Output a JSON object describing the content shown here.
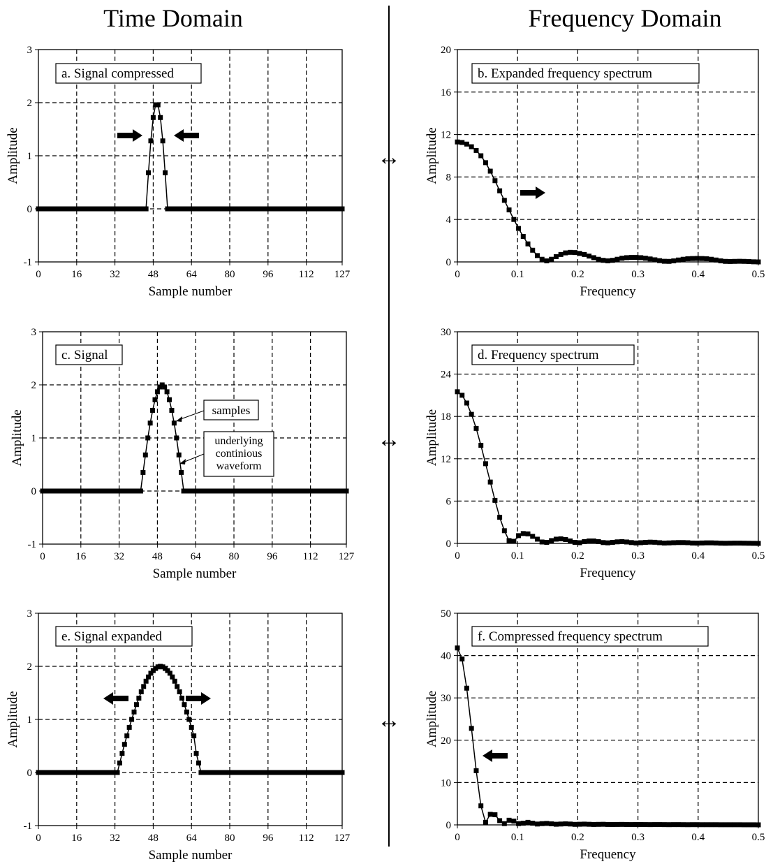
{
  "headings": {
    "left": "Time Domain",
    "right": "Frequency Domain"
  },
  "pair_symbol": "↔",
  "chart_data": [
    {
      "id": "a",
      "type": "scatter",
      "title": "a.  Signal compressed",
      "xlabel": "Sample number",
      "ylabel": "Amplitude",
      "xlim": [
        0,
        127
      ],
      "ylim": [
        -1,
        3
      ],
      "xticks": [
        0,
        16,
        32,
        48,
        64,
        80,
        96,
        112,
        127
      ],
      "yticks": [
        -1,
        0,
        1,
        2,
        3
      ],
      "grid": true,
      "arrows": [
        "right",
        "left"
      ],
      "x": [
        0,
        1,
        2,
        3,
        4,
        5,
        6,
        7,
        8,
        9,
        10,
        11,
        12,
        13,
        14,
        15,
        16,
        17,
        18,
        19,
        20,
        21,
        22,
        23,
        24,
        25,
        26,
        27,
        28,
        29,
        30,
        31,
        32,
        33,
        34,
        35,
        36,
        37,
        38,
        39,
        40,
        41,
        42,
        43,
        44,
        45,
        46,
        47,
        48,
        49,
        50,
        51,
        52,
        53,
        54,
        55,
        56,
        57,
        58,
        59,
        60,
        61,
        62,
        63,
        64,
        65,
        66,
        67,
        68,
        69,
        70,
        71,
        72,
        73,
        74,
        75,
        76,
        77,
        78,
        79,
        80,
        81,
        82,
        83,
        84,
        85,
        86,
        87,
        88,
        89,
        90,
        91,
        92,
        93,
        94,
        95,
        96,
        97,
        98,
        99,
        100,
        101,
        102,
        103,
        104,
        105,
        106,
        107,
        108,
        109,
        110,
        111,
        112,
        113,
        114,
        115,
        116,
        117,
        118,
        119,
        120,
        121,
        122,
        123,
        124,
        125,
        126,
        127
      ],
      "y": [
        0,
        0,
        0,
        0,
        0,
        0,
        0,
        0,
        0,
        0,
        0,
        0,
        0,
        0,
        0,
        0,
        0,
        0,
        0,
        0,
        0,
        0,
        0,
        0,
        0,
        0,
        0,
        0,
        0,
        0,
        0,
        0,
        0,
        0,
        0,
        0,
        0,
        0,
        0,
        0,
        0,
        0,
        0,
        0,
        0,
        0,
        0,
        0,
        0,
        0,
        0,
        0,
        0,
        0,
        0,
        0,
        0,
        0,
        0,
        0,
        0,
        0,
        0,
        0,
        0,
        0,
        0,
        0,
        0,
        0,
        0,
        0,
        0,
        0,
        0,
        0,
        0,
        0,
        0,
        0,
        0,
        0,
        0,
        0,
        0,
        0,
        0,
        0,
        0,
        0,
        0,
        0,
        0,
        0,
        0,
        0,
        0,
        0,
        0,
        0,
        0,
        0,
        0,
        0,
        0,
        0,
        0,
        0,
        0,
        0,
        0,
        0,
        0,
        0,
        0,
        0,
        0,
        0,
        0,
        0,
        0,
        0,
        0,
        0,
        0,
        0,
        0,
        0
      ],
      "pulse": {
        "x": [
          46,
          47,
          48,
          49,
          50,
          51,
          52,
          53,
          54
        ],
        "y": [
          0.68,
          1.28,
          1.72,
          1.96,
          1.96,
          1.72,
          1.28,
          0.68,
          0
        ]
      }
    },
    {
      "id": "b",
      "type": "line",
      "title": "b.  Expanded frequency spectrum",
      "xlabel": "Frequency",
      "ylabel": "Amplitude",
      "xlim": [
        0,
        0.5
      ],
      "ylim": [
        0,
        20
      ],
      "xticks": [
        0,
        0.1,
        0.2,
        0.3,
        0.4,
        0.5
      ],
      "yticks": [
        0,
        4,
        8,
        12,
        16,
        20
      ],
      "grid": true,
      "arrows": [
        "right"
      ],
      "x": [
        0.0,
        0.0078,
        0.0156,
        0.0234,
        0.0313,
        0.0391,
        0.0469,
        0.0547,
        0.0625,
        0.0703,
        0.0781,
        0.0859,
        0.0938,
        0.1016,
        0.1094,
        0.1172,
        0.125,
        0.1328,
        0.1406,
        0.1484,
        0.1563,
        0.1641,
        0.1719,
        0.1797,
        0.1875,
        0.1953,
        0.2031,
        0.2109,
        0.2188,
        0.2266,
        0.2344,
        0.2422,
        0.25,
        0.2578,
        0.2656,
        0.2734,
        0.2813,
        0.2891,
        0.2969,
        0.3047,
        0.3125,
        0.3203,
        0.3281,
        0.3359,
        0.3438,
        0.3516,
        0.3594,
        0.3672,
        0.375,
        0.3828,
        0.3906,
        0.3984,
        0.4063,
        0.4141,
        0.4219,
        0.4297,
        0.4375,
        0.4453,
        0.4531,
        0.4609,
        0.4688,
        0.4766,
        0.4844,
        0.4922,
        0.5
      ],
      "y": [
        11.3,
        11.25,
        11.1,
        10.85,
        10.5,
        10.0,
        9.35,
        8.55,
        7.65,
        6.7,
        5.8,
        4.9,
        4.0,
        3.15,
        2.4,
        1.7,
        1.1,
        0.6,
        0.25,
        0.1,
        0.25,
        0.5,
        0.7,
        0.85,
        0.9,
        0.88,
        0.8,
        0.7,
        0.55,
        0.4,
        0.25,
        0.15,
        0.1,
        0.15,
        0.25,
        0.35,
        0.4,
        0.42,
        0.42,
        0.4,
        0.35,
        0.28,
        0.2,
        0.12,
        0.06,
        0.05,
        0.1,
        0.18,
        0.25,
        0.3,
        0.32,
        0.33,
        0.32,
        0.3,
        0.25,
        0.18,
        0.1,
        0.05,
        0.04,
        0.05,
        0.06,
        0.05,
        0.03,
        0.01,
        0.0
      ]
    },
    {
      "id": "c",
      "type": "scatter",
      "title": "c.  Signal",
      "xlabel": "Sample number",
      "ylabel": "Amplitude",
      "xlim": [
        0,
        127
      ],
      "ylim": [
        -1,
        3
      ],
      "xticks": [
        0,
        16,
        32,
        48,
        64,
        80,
        96,
        112,
        127
      ],
      "yticks": [
        -1,
        0,
        1,
        2,
        3
      ],
      "grid": true,
      "annotations": [
        {
          "label": "samples"
        },
        {
          "label": "underlying continious waveform",
          "lines": [
            "underlying",
            "continious",
            "waveform"
          ]
        }
      ],
      "pulse": {
        "x": [
          41,
          42,
          43,
          44,
          45,
          46,
          47,
          48,
          49,
          50,
          51,
          52,
          53,
          54,
          55,
          56,
          57,
          58,
          59
        ],
        "y": [
          0,
          0.35,
          0.68,
          1.0,
          1.28,
          1.52,
          1.72,
          1.87,
          1.96,
          2.0,
          1.96,
          1.87,
          1.72,
          1.52,
          1.28,
          1.0,
          0.68,
          0.35,
          0
        ]
      }
    },
    {
      "id": "d",
      "type": "line",
      "title": "d.  Frequency spectrum",
      "xlabel": "Frequency",
      "ylabel": "Amplitude",
      "xlim": [
        0,
        0.5
      ],
      "ylim": [
        0,
        30
      ],
      "xticks": [
        0,
        0.1,
        0.2,
        0.3,
        0.4,
        0.5
      ],
      "yticks": [
        0,
        6,
        12,
        18,
        24,
        30
      ],
      "grid": true,
      "x": [
        0.0,
        0.0078,
        0.0156,
        0.0234,
        0.0313,
        0.0391,
        0.0469,
        0.0547,
        0.0625,
        0.0703,
        0.0781,
        0.0859,
        0.0938,
        0.1016,
        0.1094,
        0.1172,
        0.125,
        0.1328,
        0.1406,
        0.1484,
        0.1563,
        0.1641,
        0.1719,
        0.1797,
        0.1875,
        0.1953,
        0.2031,
        0.2109,
        0.2188,
        0.2266,
        0.2344,
        0.2422,
        0.25,
        0.2578,
        0.2656,
        0.2734,
        0.2813,
        0.2891,
        0.2969,
        0.3047,
        0.3125,
        0.3203,
        0.3281,
        0.3359,
        0.3438,
        0.3516,
        0.3594,
        0.3672,
        0.375,
        0.3828,
        0.3906,
        0.3984,
        0.4063,
        0.4141,
        0.4219,
        0.4297,
        0.4375,
        0.4453,
        0.4531,
        0.4609,
        0.4688,
        0.4766,
        0.4844,
        0.4922,
        0.5
      ],
      "y": [
        21.5,
        21.0,
        19.9,
        18.3,
        16.3,
        13.9,
        11.3,
        8.7,
        6.1,
        3.7,
        1.8,
        0.4,
        0.3,
        1.1,
        1.4,
        1.35,
        1.0,
        0.6,
        0.2,
        0.15,
        0.4,
        0.6,
        0.65,
        0.55,
        0.35,
        0.15,
        0.1,
        0.25,
        0.35,
        0.35,
        0.25,
        0.12,
        0.08,
        0.15,
        0.22,
        0.25,
        0.2,
        0.12,
        0.06,
        0.1,
        0.15,
        0.18,
        0.16,
        0.1,
        0.05,
        0.07,
        0.1,
        0.12,
        0.12,
        0.1,
        0.05,
        0.04,
        0.06,
        0.08,
        0.08,
        0.06,
        0.03,
        0.02,
        0.03,
        0.04,
        0.04,
        0.03,
        0.02,
        0.01,
        0.0
      ]
    },
    {
      "id": "e",
      "type": "scatter",
      "title": "e.  Signal expanded",
      "xlabel": "Sample number",
      "ylabel": "Amplitude",
      "xlim": [
        0,
        127
      ],
      "ylim": [
        -1,
        3
      ],
      "xticks": [
        0,
        16,
        32,
        48,
        64,
        80,
        96,
        112,
        127
      ],
      "yticks": [
        -1,
        0,
        1,
        2,
        3
      ],
      "grid": true,
      "arrows": [
        "left",
        "right"
      ],
      "pulse": {
        "x": [
          33,
          34,
          35,
          36,
          37,
          38,
          39,
          40,
          41,
          42,
          43,
          44,
          45,
          46,
          47,
          48,
          49,
          50,
          51,
          52,
          53,
          54,
          55,
          56,
          57,
          58,
          59,
          60,
          61,
          62,
          63,
          64,
          65,
          66,
          67
        ],
        "y": [
          0,
          0.18,
          0.36,
          0.53,
          0.69,
          0.85,
          1.0,
          1.14,
          1.28,
          1.4,
          1.52,
          1.62,
          1.72,
          1.8,
          1.87,
          1.92,
          1.96,
          1.99,
          2.0,
          1.99,
          1.96,
          1.92,
          1.87,
          1.8,
          1.72,
          1.62,
          1.52,
          1.4,
          1.28,
          1.14,
          1.0,
          0.85,
          0.69,
          0.36,
          0.18
        ]
      }
    },
    {
      "id": "f",
      "type": "line",
      "title": "f.  Compressed frequency spectrum",
      "xlabel": "Frequency",
      "ylabel": "Amplitude",
      "xlim": [
        0,
        0.5
      ],
      "ylim": [
        0,
        50
      ],
      "xticks": [
        0,
        0.1,
        0.2,
        0.3,
        0.4,
        0.5
      ],
      "yticks": [
        0,
        10,
        20,
        30,
        40,
        50
      ],
      "grid": true,
      "arrows": [
        "left"
      ],
      "x": [
        0.0,
        0.0078,
        0.0156,
        0.0234,
        0.0313,
        0.0391,
        0.0469,
        0.0547,
        0.0625,
        0.0703,
        0.0781,
        0.0859,
        0.0938,
        0.1016,
        0.1094,
        0.1172,
        0.125,
        0.1328,
        0.1406,
        0.1484,
        0.1563,
        0.1641,
        0.1719,
        0.1797,
        0.1875,
        0.1953,
        0.2031,
        0.2109,
        0.2188,
        0.2266,
        0.2344,
        0.2422,
        0.25,
        0.2578,
        0.2656,
        0.2734,
        0.2813,
        0.2891,
        0.2969,
        0.3047,
        0.3125,
        0.3203,
        0.3281,
        0.3359,
        0.3438,
        0.3516,
        0.3594,
        0.3672,
        0.375,
        0.3828,
        0.3906,
        0.3984,
        0.4063,
        0.4141,
        0.4219,
        0.4297,
        0.4375,
        0.4453,
        0.4531,
        0.4609,
        0.4688,
        0.4766,
        0.4844,
        0.4922,
        0.5
      ],
      "y": [
        41.8,
        39.2,
        32.3,
        22.8,
        12.8,
        4.5,
        0.6,
        2.5,
        2.4,
        1.0,
        0.3,
        1.1,
        0.9,
        0.3,
        0.4,
        0.6,
        0.4,
        0.2,
        0.3,
        0.35,
        0.25,
        0.15,
        0.2,
        0.25,
        0.2,
        0.12,
        0.15,
        0.18,
        0.14,
        0.1,
        0.12,
        0.14,
        0.1,
        0.08,
        0.1,
        0.11,
        0.09,
        0.07,
        0.08,
        0.09,
        0.07,
        0.06,
        0.07,
        0.07,
        0.06,
        0.05,
        0.06,
        0.06,
        0.05,
        0.04,
        0.05,
        0.05,
        0.04,
        0.04,
        0.04,
        0.04,
        0.03,
        0.03,
        0.03,
        0.03,
        0.03,
        0.02,
        0.02,
        0.02,
        0.01
      ]
    }
  ]
}
